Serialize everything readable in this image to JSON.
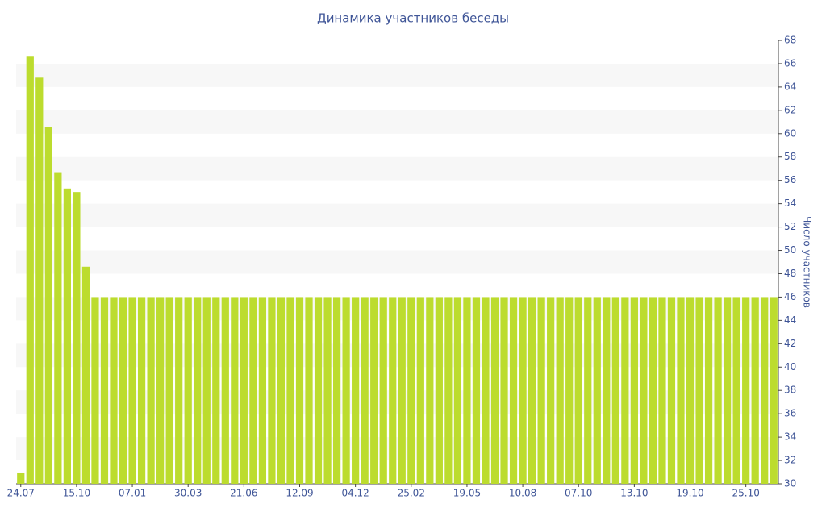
{
  "chart_data": {
    "type": "bar",
    "title": "Динамика участников беседы",
    "y_label": "Число участников",
    "categories": [
      "24.07",
      null,
      null,
      null,
      null,
      null,
      "15.10",
      null,
      null,
      null,
      null,
      null,
      "07.01",
      null,
      null,
      null,
      null,
      null,
      "30.03",
      null,
      null,
      null,
      null,
      null,
      "21.06",
      null,
      null,
      null,
      null,
      null,
      "12.09",
      null,
      null,
      null,
      null,
      null,
      "04.12",
      null,
      null,
      null,
      null,
      null,
      "25.02",
      null,
      null,
      null,
      null,
      null,
      "19.05",
      null,
      null,
      null,
      null,
      null,
      "10.08",
      null,
      null,
      null,
      null,
      null,
      "07.10",
      null,
      null,
      null,
      null,
      null,
      "13.10",
      null,
      null,
      null,
      null,
      null,
      "19.10",
      null,
      null,
      null,
      null,
      null,
      "25.10",
      null,
      null,
      null
    ],
    "values": [
      30.9,
      66.6,
      64.8,
      60.6,
      56.7,
      55.3,
      55.0,
      48.6,
      46,
      46,
      46,
      46,
      46,
      46,
      46,
      46,
      46,
      46,
      46,
      46,
      46,
      46,
      46,
      46,
      46,
      46,
      46,
      46,
      46,
      46,
      46,
      46,
      46,
      46,
      46,
      46,
      46,
      46,
      46,
      46,
      46,
      46,
      46,
      46,
      46,
      46,
      46,
      46,
      46,
      46,
      46,
      46,
      46,
      46,
      46,
      46,
      46,
      46,
      46,
      46,
      46,
      46,
      46,
      46,
      46,
      46,
      46,
      46,
      46,
      46,
      46,
      46,
      46,
      46,
      46,
      46,
      46,
      46,
      46,
      46,
      46,
      46
    ],
    "color": "#bcdc2e",
    "ylim": [
      30,
      68
    ],
    "yticks": [
      30,
      32,
      34,
      36,
      38,
      40,
      42,
      44,
      46,
      48,
      50,
      52,
      54,
      56,
      58,
      60,
      62,
      64,
      66,
      68
    ],
    "y_axis_side": "right",
    "banded_grid": true
  }
}
